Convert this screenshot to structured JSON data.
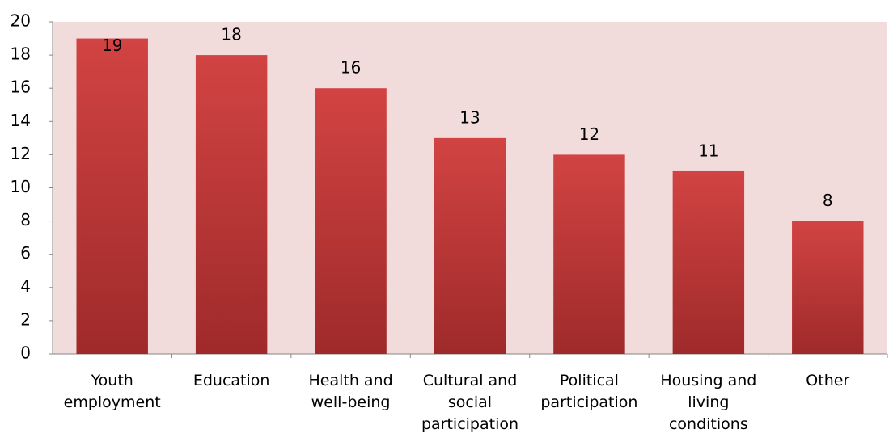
{
  "chart_data": {
    "type": "bar",
    "categories": [
      "Youth employment",
      "Education",
      "Health and well-being",
      "Cultural and social participation",
      "Political participation",
      "Housing and living conditions",
      "Other"
    ],
    "values": [
      19,
      18,
      16,
      13,
      12,
      11,
      8
    ],
    "color": "#c93b3b",
    "ylim": [
      0,
      20
    ],
    "yticks": [
      0,
      2,
      4,
      6,
      8,
      10,
      12,
      14,
      16,
      18,
      20
    ],
    "grid": false
  }
}
